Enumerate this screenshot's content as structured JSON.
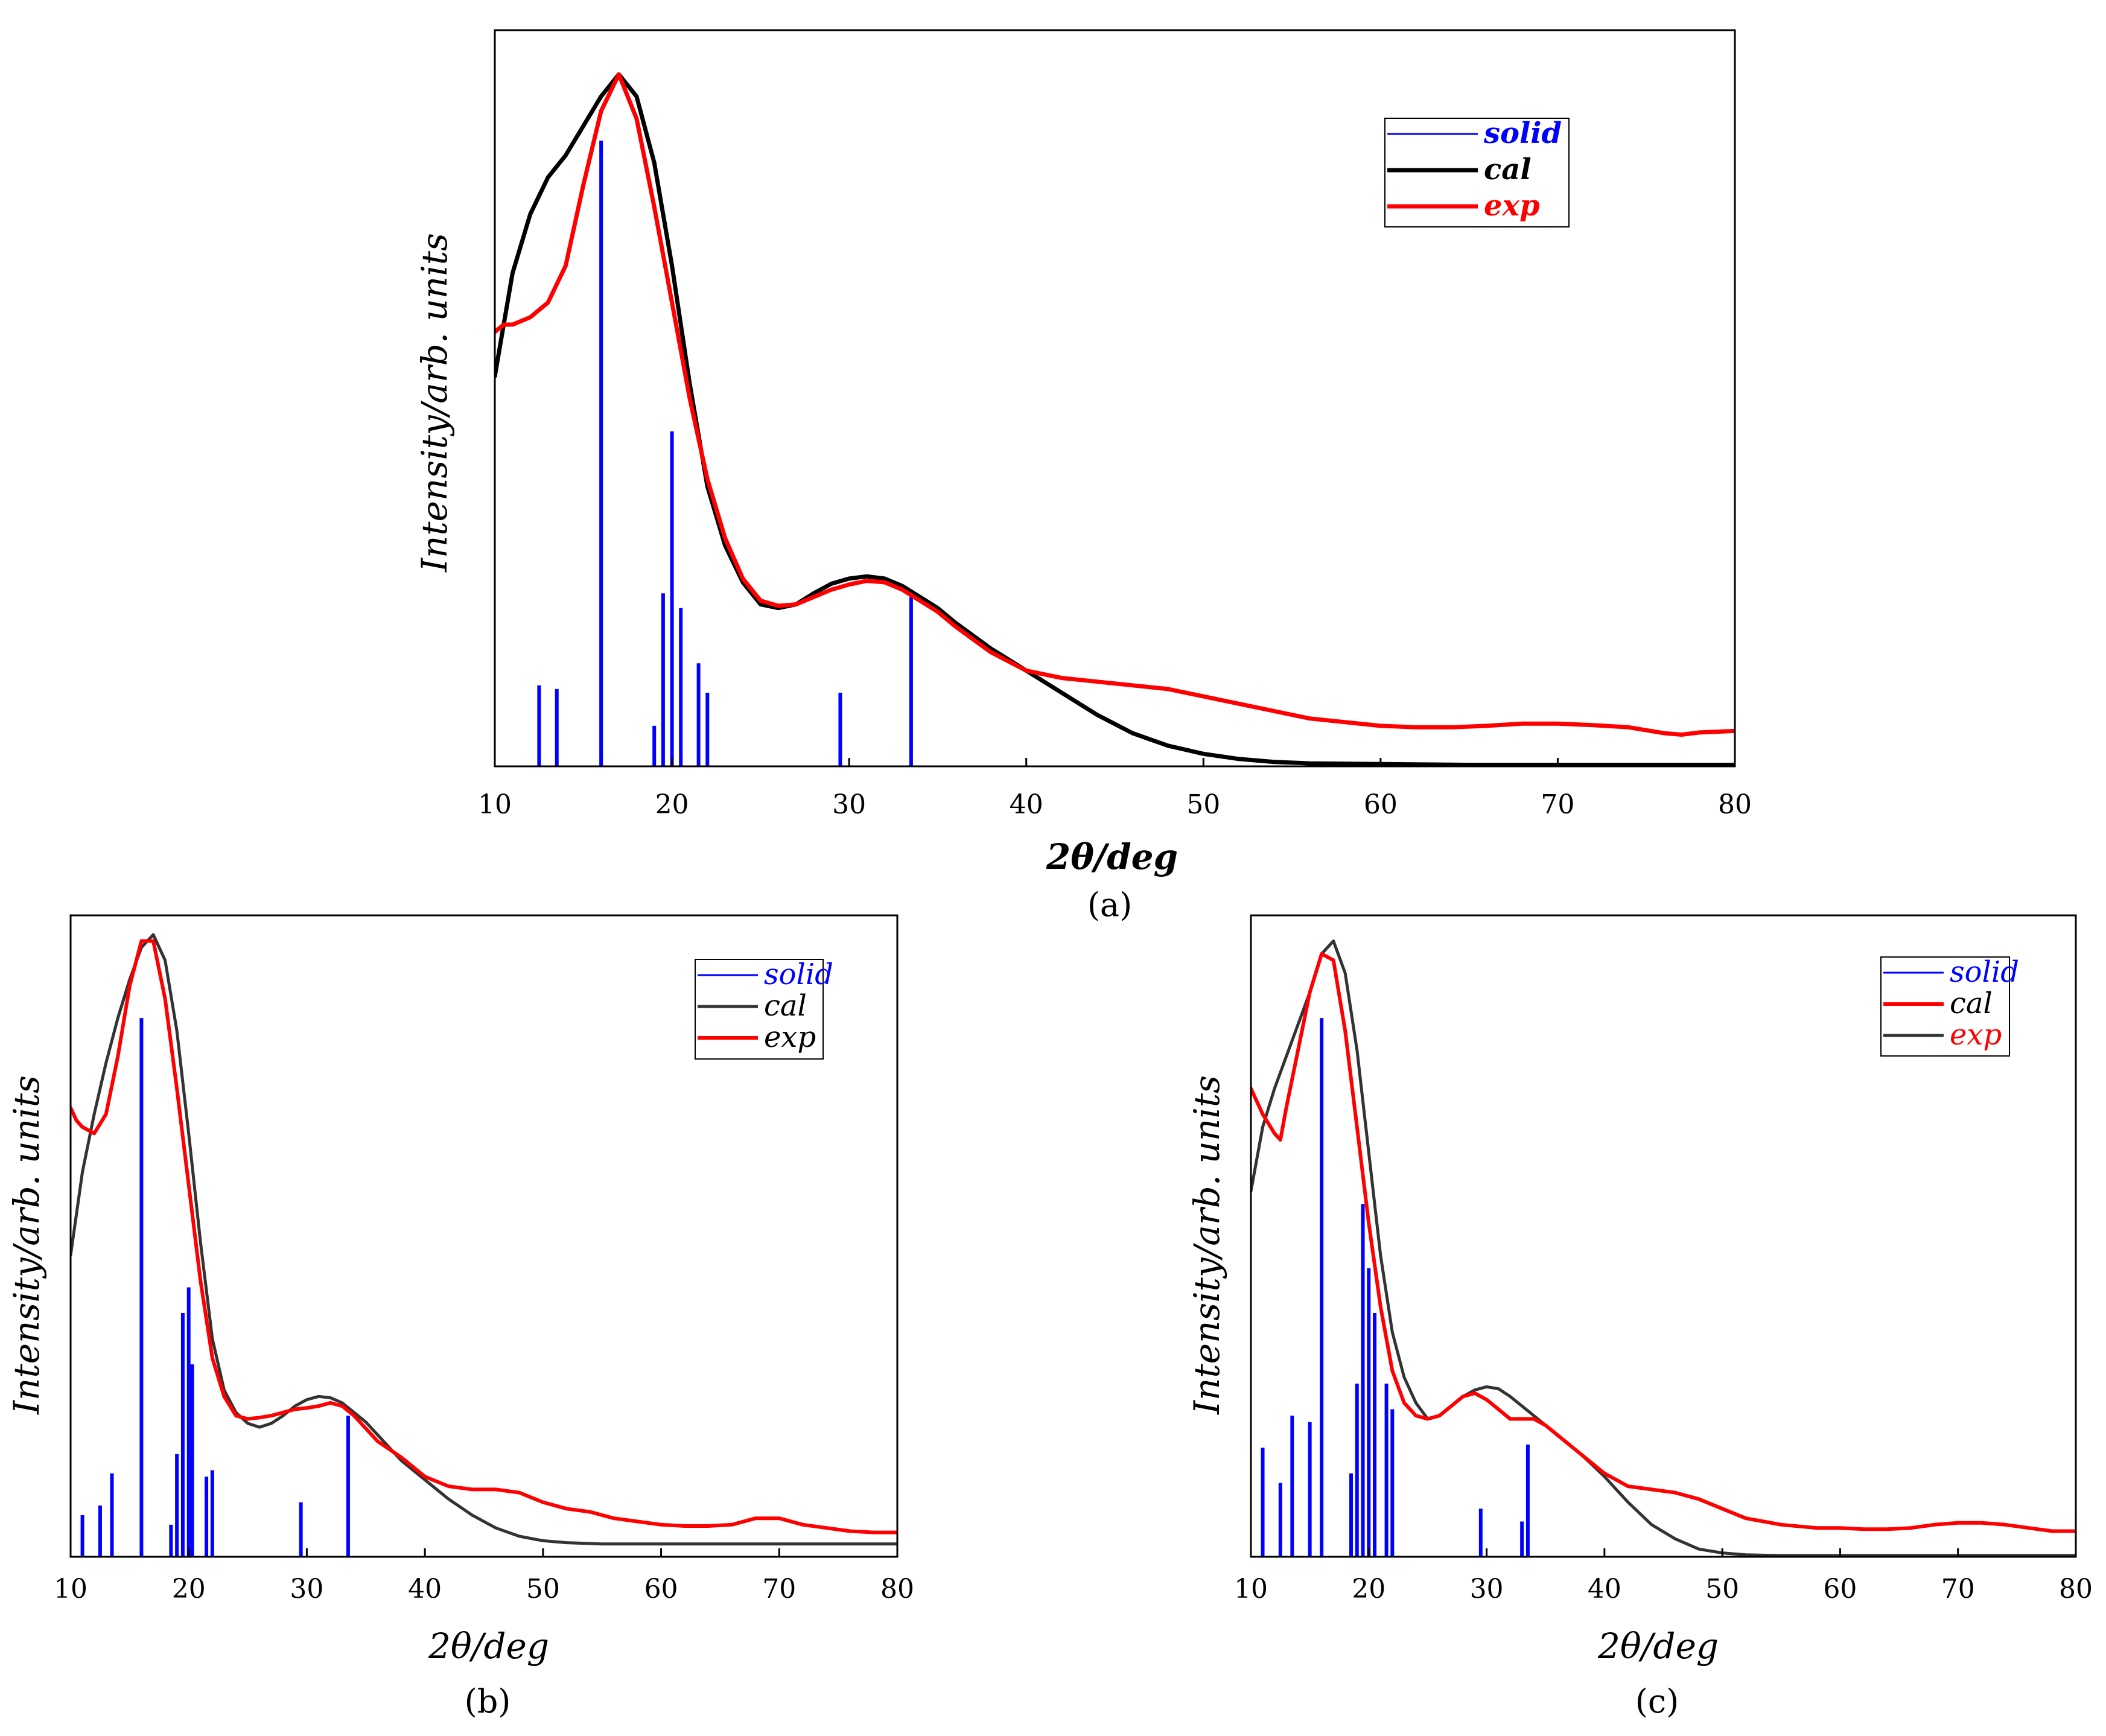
{
  "colors": {
    "solid": "#0000ff",
    "cal": "#000000",
    "exp": "#ff0000",
    "black": "#000000"
  },
  "chart_data": [
    {
      "id": "a",
      "type": "line",
      "caption": "(a)",
      "xlabel": "2θ/deg",
      "ylabel": "Intensity/arb. units",
      "xlim": [
        10,
        80
      ],
      "ylim": [
        0,
        100
      ],
      "xticks": [
        10,
        20,
        30,
        40,
        50,
        60,
        70,
        80
      ],
      "legend": {
        "position": "top-right",
        "entries": [
          {
            "label": "solid",
            "color": "#0000ff",
            "text_color": "#0000ff",
            "style": "thin"
          },
          {
            "label": "cal",
            "color": "#000000",
            "text_color": "#000000",
            "style": "thick"
          },
          {
            "label": "exp",
            "color": "#ff0000",
            "text_color": "#ff0000",
            "style": "thick"
          }
        ]
      },
      "sticks": {
        "name": "solid",
        "x": [
          12.5,
          13.5,
          16.0,
          19.0,
          19.5,
          20.0,
          20.5,
          21.5,
          22.0,
          29.5,
          33.5
        ],
        "y": [
          11,
          10.5,
          85,
          5.5,
          23.5,
          45.5,
          21.5,
          14,
          10,
          10,
          23
        ]
      },
      "series": [
        {
          "name": "cal",
          "color": "#000000",
          "width": 7,
          "x": [
            10,
            11,
            12,
            13,
            14,
            15,
            16,
            17,
            18,
            19,
            20,
            21,
            22,
            23,
            24,
            25,
            26,
            27,
            28,
            29,
            30,
            31,
            32,
            33,
            34,
            35,
            36,
            38,
            40,
            42,
            44,
            46,
            48,
            50,
            52,
            54,
            56,
            60,
            65,
            70,
            75,
            80
          ],
          "y": [
            53,
            67,
            75,
            80,
            83,
            87,
            91,
            94,
            91,
            82,
            68,
            52,
            38,
            30,
            25,
            22,
            21.5,
            22,
            23.5,
            24.8,
            25.5,
            25.8,
            25.5,
            24.5,
            23,
            21.5,
            19.5,
            16,
            13,
            10,
            7,
            4.5,
            2.8,
            1.7,
            1.0,
            0.6,
            0.4,
            0.3,
            0.2,
            0.2,
            0.2,
            0.2
          ]
        },
        {
          "name": "exp",
          "color": "#ff0000",
          "width": 7,
          "x": [
            10,
            10.5,
            11,
            12,
            12.5,
            13,
            14,
            15,
            16,
            17,
            18,
            19,
            20,
            21,
            22,
            23,
            24,
            25,
            26,
            27,
            28,
            29,
            30,
            31,
            32,
            33,
            34,
            35,
            36,
            38,
            40,
            42,
            44,
            46,
            48,
            50,
            52,
            54,
            56,
            58,
            60,
            62,
            64,
            66,
            68,
            70,
            72,
            74,
            76,
            77,
            78,
            80
          ],
          "y": [
            59,
            60,
            60,
            61,
            62,
            63,
            68,
            79,
            89,
            94,
            88,
            76,
            63,
            50,
            39,
            31,
            25.5,
            22.5,
            21.8,
            22,
            23,
            24,
            24.7,
            25.2,
            25,
            24,
            22.5,
            21,
            19,
            15.5,
            13,
            12,
            11.5,
            11,
            10.5,
            9.5,
            8.5,
            7.5,
            6.5,
            6,
            5.5,
            5.3,
            5.3,
            5.5,
            5.8,
            5.8,
            5.6,
            5.3,
            4.5,
            4.3,
            4.6,
            4.8
          ]
        }
      ]
    },
    {
      "id": "b",
      "type": "line",
      "caption": "(b)",
      "xlabel": "2θ/deg",
      "ylabel": "Intensity/arb. units",
      "xlim": [
        10,
        80
      ],
      "ylim": [
        0,
        100
      ],
      "xticks": [
        10,
        20,
        30,
        40,
        50,
        60,
        70,
        80
      ],
      "legend": {
        "position": "top-right",
        "entries": [
          {
            "label": "solid",
            "color": "#0000ff",
            "text_color": "#0000ff",
            "style": "thin"
          },
          {
            "label": "cal",
            "color": "#333333",
            "text_color": "#000000",
            "style": "thin"
          },
          {
            "label": "exp",
            "color": "#ff0000",
            "text_color": "#000000",
            "style": "thick"
          }
        ]
      },
      "sticks": {
        "name": "solid",
        "x": [
          11,
          12.5,
          13.5,
          16,
          18.5,
          19,
          19.5,
          20,
          20.3,
          21.5,
          22,
          29.5,
          33.5
        ],
        "y": [
          6.5,
          8,
          13,
          84,
          5,
          16,
          38,
          42,
          30,
          12.5,
          13.5,
          8.5,
          22
        ]
      },
      "series": [
        {
          "name": "cal",
          "color": "#333333",
          "width": 5,
          "x": [
            10,
            11,
            12,
            13,
            14,
            15,
            16,
            17,
            18,
            19,
            20,
            21,
            22,
            23,
            24,
            25,
            26,
            27,
            28,
            29,
            30,
            31,
            32,
            33,
            34,
            35,
            36,
            38,
            40,
            42,
            44,
            46,
            48,
            50,
            52,
            55,
            60,
            70,
            80
          ],
          "y": [
            47,
            60,
            69,
            77,
            84,
            90,
            95,
            97,
            93,
            82,
            66,
            49,
            34,
            26,
            22.5,
            20.8,
            20.2,
            20.8,
            22,
            23.5,
            24.5,
            25,
            24.8,
            24,
            22.5,
            21,
            19,
            15,
            12,
            9,
            6.5,
            4.5,
            3.2,
            2.5,
            2.2,
            2.0,
            2.0,
            2.0,
            2.0
          ]
        },
        {
          "name": "exp",
          "color": "#ff0000",
          "width": 6,
          "x": [
            10,
            10.5,
            11,
            12,
            13,
            14,
            15,
            16,
            17,
            18,
            19,
            20,
            21,
            22,
            23,
            24,
            25,
            26,
            27,
            28,
            29,
            30,
            31,
            32,
            33,
            34,
            35,
            36,
            38,
            40,
            42,
            44,
            46,
            48,
            50,
            52,
            54,
            56,
            58,
            60,
            62,
            64,
            66,
            68,
            70,
            72,
            74,
            76,
            78,
            80
          ],
          "y": [
            70,
            68,
            67,
            66,
            69,
            78,
            89,
            96,
            96,
            87,
            73,
            58,
            43,
            31,
            25,
            22,
            21.5,
            21.7,
            22,
            22.5,
            23,
            23.2,
            23.5,
            24,
            23.5,
            22,
            20,
            18,
            15.5,
            12.5,
            11,
            10.5,
            10.5,
            10,
            8.5,
            7.5,
            7,
            6,
            5.5,
            5,
            4.8,
            4.8,
            5,
            6,
            6,
            5,
            4.5,
            4,
            3.8,
            3.8
          ]
        }
      ]
    },
    {
      "id": "c",
      "type": "line",
      "caption": "(c)",
      "xlabel": "2θ/deg",
      "ylabel": "Intensity/arb. units",
      "xlim": [
        10,
        80
      ],
      "ylim": [
        0,
        100
      ],
      "xticks": [
        10,
        20,
        30,
        40,
        50,
        60,
        70,
        80
      ],
      "legend": {
        "position": "top-right",
        "entries": [
          {
            "label": "solid",
            "color": "#0000ff",
            "text_color": "#0000ff",
            "style": "thin"
          },
          {
            "label": "cal",
            "color": "#ff0000",
            "text_color": "#000000",
            "style": "thick"
          },
          {
            "label": "exp",
            "color": "#333333",
            "text_color": "#ff0000",
            "style": "thin"
          }
        ]
      },
      "sticks": {
        "name": "solid",
        "x": [
          11,
          12.5,
          13.5,
          15,
          16,
          18.5,
          19,
          19.5,
          20,
          20.5,
          21.5,
          22,
          29.5,
          33,
          33.5
        ],
        "y": [
          17,
          11.5,
          22,
          21,
          84,
          13,
          27,
          55,
          45,
          38,
          27,
          23,
          7.5,
          5.5,
          17.5
        ]
      },
      "series": [
        {
          "name": "exp",
          "color": "#333333",
          "width": 5,
          "x": [
            10,
            11,
            12,
            13,
            14,
            15,
            16,
            17,
            18,
            19,
            20,
            21,
            22,
            23,
            24,
            25,
            26,
            27,
            28,
            29,
            30,
            31,
            32,
            33,
            34,
            35,
            36,
            38,
            40,
            42,
            44,
            46,
            48,
            50,
            52,
            55,
            60,
            70,
            80
          ],
          "y": [
            57,
            67,
            73,
            78,
            83,
            88,
            94,
            96,
            91,
            79,
            63,
            47,
            35,
            28,
            24,
            21.5,
            22,
            23.5,
            25,
            26,
            26.5,
            26.2,
            25,
            23.5,
            22,
            20.5,
            19,
            16,
            12.5,
            8.5,
            5,
            2.8,
            1.2,
            0.6,
            0.3,
            0.2,
            0.2,
            0.2,
            0.2
          ]
        },
        {
          "name": "cal",
          "color": "#ff0000",
          "width": 6,
          "x": [
            10,
            11,
            12,
            12.5,
            13,
            14,
            15,
            16,
            17,
            18,
            19,
            20,
            21,
            22,
            23,
            24,
            25,
            26,
            27,
            28,
            29,
            30,
            31,
            32,
            33,
            34,
            35,
            36,
            38,
            40,
            42,
            44,
            46,
            48,
            50,
            52,
            55,
            58,
            60,
            62,
            64,
            66,
            68,
            70,
            72,
            74,
            76,
            78,
            80
          ],
          "y": [
            73,
            69,
            66,
            65,
            70,
            79,
            88,
            94,
            93,
            82,
            67,
            52,
            39,
            29,
            24,
            22,
            21.5,
            22,
            23.5,
            25,
            25.5,
            24.5,
            23,
            21.5,
            21.5,
            21.5,
            20.5,
            19,
            16,
            13,
            11,
            10.5,
            10,
            9,
            7.5,
            6,
            5,
            4.5,
            4.5,
            4.3,
            4.3,
            4.5,
            5,
            5.3,
            5.3,
            5,
            4.5,
            4,
            4
          ]
        }
      ]
    }
  ]
}
